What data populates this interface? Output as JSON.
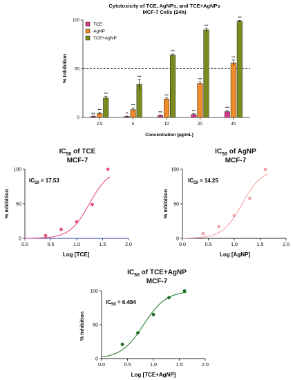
{
  "chart_data": [
    {
      "type": "bar",
      "title": "Cytotoxicity of TCE, AgNPs, and TCE+AgNPs",
      "subtitle": "MCF-7 Cells (24h)",
      "xlabel": "Concentration (µg/mL)",
      "ylabel": "% Inhibition",
      "ylim": [
        0,
        100
      ],
      "yticks": [
        "0",
        "50",
        "100"
      ],
      "categories": [
        "2.5",
        "5",
        "10",
        "20",
        "40"
      ],
      "reference_line": 50,
      "legend_position": "top-left",
      "series": [
        {
          "name": "TCE",
          "color": "#d63a8e",
          "values": [
            1,
            1,
            2,
            3,
            6
          ],
          "errors": [
            0.4,
            0.4,
            0.5,
            0.8,
            1.2
          ],
          "labels": [
            "ns",
            "**",
            "***",
            "***",
            "***"
          ]
        },
        {
          "name": "AgNP",
          "color": "#f28c28",
          "values": [
            4,
            8,
            19,
            35,
            56
          ],
          "errors": [
            1.0,
            1.8,
            1.0,
            1.5,
            3.0
          ],
          "labels": [
            "***",
            "***",
            "***",
            "***",
            "***"
          ]
        },
        {
          "name": "TCE+AgNP",
          "color": "#7b8a1e",
          "values": [
            20,
            34,
            64,
            90,
            99
          ],
          "errors": [
            1.8,
            5.0,
            1.2,
            1.5,
            0.8
          ],
          "labels": [
            "***",
            "***",
            "***",
            "***",
            "***"
          ]
        }
      ]
    },
    {
      "type": "scatter",
      "title_main": "IC",
      "title_sub": "50",
      "title_rest": " of TCE",
      "subtitle": "MCF-7",
      "annotation_main": "IC",
      "annotation_sub": "50",
      "annotation_rest": " = 17.53",
      "xlabel": "Log [TCE]",
      "ylabel": "% Inhibition",
      "xlim": [
        0,
        2.0
      ],
      "ylim": [
        0,
        100
      ],
      "xticks": [
        "0.0",
        "0.5",
        "1.0",
        "1.5",
        "2.0"
      ],
      "yticks": [
        "0",
        "50",
        "100"
      ],
      "point_color": "#e8507e",
      "curve_color": "#e8507e",
      "x_axis_color": "#2b3aa8",
      "x": [
        0.4,
        0.7,
        1.0,
        1.3,
        1.6
      ],
      "y": [
        4,
        13,
        24,
        49,
        100
      ],
      "fit": {
        "log_ic50": 1.2438,
        "hill": 2.3
      }
    },
    {
      "type": "scatter",
      "title_main": "IC",
      "title_sub": "50",
      "title_rest": " of AgNP",
      "subtitle": "MCF-7",
      "annotation_main": "IC",
      "annotation_sub": "50",
      "annotation_rest": " = 14.25",
      "xlabel": "Log [AgNP]",
      "ylabel": "% Inhibition",
      "xlim": [
        0,
        2.0
      ],
      "ylim": [
        0,
        100
      ],
      "xticks": [
        "0.0",
        "0.5",
        "1.0",
        "1.5",
        "2.0"
      ],
      "yticks": [
        "0",
        "50",
        "100"
      ],
      "point_color": "#f4a3a8",
      "curve_color": "#f4a3a8",
      "x_axis_color": "#222222",
      "x": [
        0.4,
        0.7,
        1.0,
        1.3,
        1.6
      ],
      "y": [
        7,
        17,
        33,
        58,
        100
      ],
      "fit": {
        "log_ic50": 1.1538,
        "hill": 2.3
      }
    },
    {
      "type": "scatter",
      "title_main": "IC",
      "title_sub": "50",
      "title_rest": " of TCE+AgNP",
      "subtitle": "MCF-7",
      "annotation_main": "IC",
      "annotation_sub": "50",
      "annotation_rest": " = 6.484",
      "xlabel": "Log [TCE+AgNP]",
      "ylabel": "% Inhibition",
      "xlim": [
        0,
        2.0
      ],
      "ylim": [
        0,
        100
      ],
      "xticks": [
        "0.0",
        "0.5",
        "1.0",
        "1.5",
        "2.0"
      ],
      "yticks": [
        "0",
        "50",
        "100"
      ],
      "point_color": "#1f6b1f",
      "curve_color": "#2e7d32",
      "x_axis_color": "#222222",
      "x": [
        0.4,
        0.7,
        1.0,
        1.3,
        1.6
      ],
      "y": [
        21,
        38,
        65,
        90,
        100
      ],
      "fit": {
        "log_ic50": 0.8118,
        "hill": 2.0
      }
    }
  ]
}
